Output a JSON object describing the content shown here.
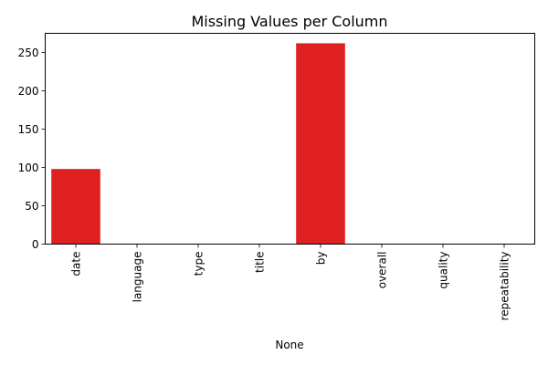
{
  "chart_data": {
    "type": "bar",
    "title": "Missing Values per Column",
    "xlabel": "None",
    "ylabel": "",
    "categories": [
      "date",
      "language",
      "type",
      "title",
      "by",
      "overall",
      "quality",
      "repeatability"
    ],
    "values": [
      98,
      0,
      0,
      0,
      262,
      0,
      0,
      0
    ],
    "ylim": [
      0,
      275
    ],
    "yticks": [
      0,
      50,
      100,
      150,
      200,
      250
    ],
    "bar_color": "#e02020",
    "grid": false,
    "legend": "none",
    "x_tick_rotation": "vertical"
  }
}
